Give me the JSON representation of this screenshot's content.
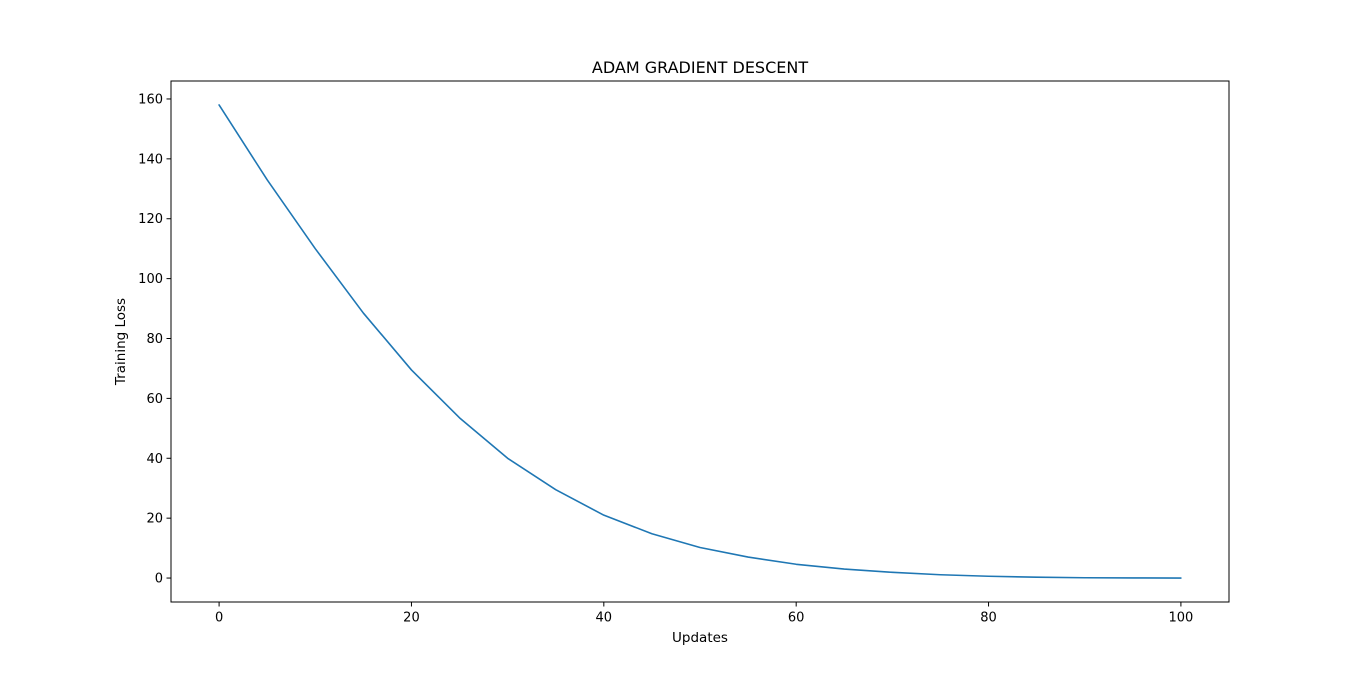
{
  "chart_data": {
    "type": "line",
    "title": "ADAM GRADIENT DESCENT",
    "xlabel": "Updates",
    "ylabel": "Training Loss",
    "xlim": [
      -5,
      105
    ],
    "ylim": [
      -8,
      166
    ],
    "xticks": [
      0,
      20,
      40,
      60,
      80,
      100
    ],
    "yticks": [
      0,
      20,
      40,
      60,
      80,
      100,
      120,
      140,
      160
    ],
    "grid": false,
    "legend": "none",
    "series": [
      {
        "color": "#1f77b4",
        "x": [
          0,
          5,
          10,
          15,
          20,
          25,
          30,
          35,
          40,
          45,
          50,
          55,
          60,
          65,
          70,
          75,
          80,
          85,
          90,
          95,
          100
        ],
        "y": [
          158,
          133,
          110,
          88.5,
          69.5,
          53.5,
          40,
          29.5,
          21,
          14.8,
          10.2,
          7,
          4.6,
          3,
          1.9,
          1.1,
          0.6,
          0.3,
          0.1,
          0.05,
          0
        ]
      }
    ]
  }
}
